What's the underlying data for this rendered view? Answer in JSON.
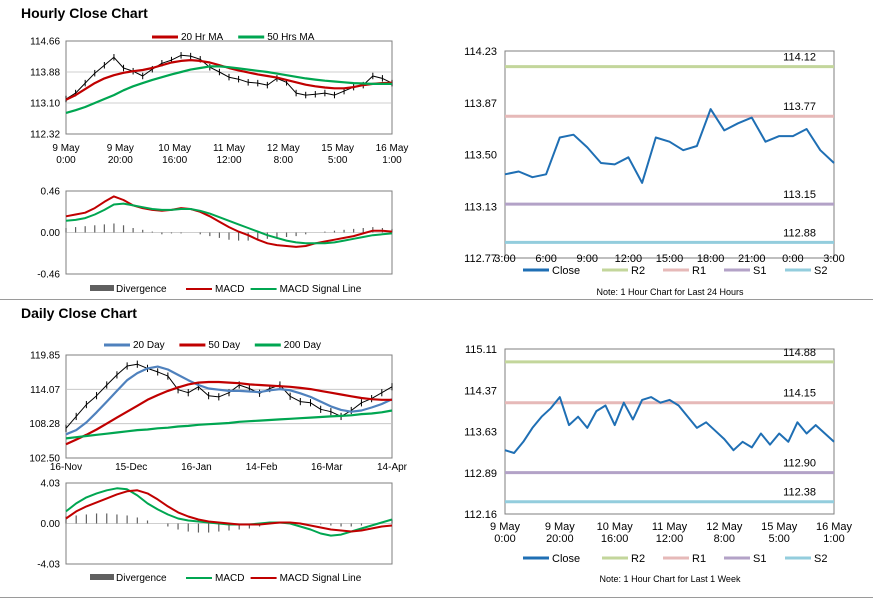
{
  "hourly": {
    "title": "Hourly Close Chart",
    "note": "Note: 1 Hour Chart for Last 24 Hours"
  },
  "daily": {
    "title": "Daily Close Chart",
    "note": "Note: 1 Hour Chart for Last 1 Week"
  },
  "chart_data": [
    {
      "id": "hourly-price",
      "type": "line",
      "title": "",
      "xlabel": "",
      "ylabel": "",
      "ylim": [
        112.32,
        114.66
      ],
      "yticks": [
        "114.66",
        "113.88",
        "113.10",
        "112.32"
      ],
      "xticks": [
        [
          "9 May",
          "0:00"
        ],
        [
          "9 May",
          "20:00"
        ],
        [
          "10 May",
          "16:00"
        ],
        [
          "11 May",
          "12:00"
        ],
        [
          "12 May",
          "8:00"
        ],
        [
          "15 May",
          "5:00"
        ],
        [
          "16 May",
          "1:00"
        ]
      ],
      "grid": true,
      "legend": "top",
      "series": [
        {
          "name": "20 Hr MA",
          "color": "#c00000",
          "values": [
            113.18,
            113.3,
            113.45,
            113.6,
            113.72,
            113.8,
            113.86,
            113.9,
            113.93,
            113.98,
            114.05,
            114.12,
            114.16,
            114.18,
            114.16,
            114.12,
            114.05,
            113.98,
            113.92,
            113.87,
            113.82,
            113.78,
            113.74,
            113.68,
            113.62,
            113.56,
            113.52,
            113.49,
            113.47,
            113.47,
            113.5,
            113.55,
            113.58,
            113.6,
            113.61
          ]
        },
        {
          "name": "50 Hrs MA",
          "color": "#00a651",
          "values": [
            112.85,
            112.92,
            113.0,
            113.1,
            113.2,
            113.3,
            113.42,
            113.52,
            113.6,
            113.68,
            113.75,
            113.82,
            113.88,
            113.94,
            113.98,
            114.02,
            114.02,
            114.0,
            113.97,
            113.94,
            113.91,
            113.88,
            113.84,
            113.8,
            113.76,
            113.72,
            113.69,
            113.66,
            113.64,
            113.62,
            113.6,
            113.59,
            113.58,
            113.58,
            113.58
          ]
        }
      ],
      "close": [
        113.2,
        113.35,
        113.6,
        113.85,
        114.05,
        114.25,
        113.98,
        113.9,
        113.78,
        113.95,
        114.1,
        114.18,
        114.3,
        114.28,
        114.2,
        114.0,
        113.88,
        113.75,
        113.7,
        113.62,
        113.6,
        113.55,
        113.72,
        113.62,
        113.35,
        113.3,
        113.32,
        113.35,
        113.3,
        113.4,
        113.5,
        113.55,
        113.78,
        113.72,
        113.6
      ]
    },
    {
      "id": "hourly-macd",
      "type": "line",
      "title": "",
      "xlabel": "",
      "ylabel": "",
      "ylim": [
        -0.46,
        0.46
      ],
      "yticks": [
        "0.46",
        "0.00",
        "-0.46"
      ],
      "grid": true,
      "legend": "bottom",
      "series": [
        {
          "name": "Divergence",
          "color": "#606060",
          "values": [
            0.05,
            0.06,
            0.07,
            0.08,
            0.09,
            0.1,
            0.08,
            0.05,
            0.03,
            0.01,
            -0.02,
            -0.01,
            -0.01,
            0.0,
            -0.02,
            -0.04,
            -0.06,
            -0.08,
            -0.09,
            -0.09,
            -0.08,
            -0.07,
            -0.06,
            -0.05,
            -0.04,
            -0.02,
            0.0,
            0.01,
            0.02,
            0.03,
            0.04,
            0.05,
            0.06,
            0.05,
            0.04
          ]
        },
        {
          "name": "MACD",
          "color": "#c00000",
          "values": [
            0.18,
            0.2,
            0.22,
            0.27,
            0.34,
            0.4,
            0.36,
            0.3,
            0.27,
            0.25,
            0.24,
            0.25,
            0.27,
            0.26,
            0.23,
            0.18,
            0.12,
            0.06,
            0.01,
            -0.03,
            -0.08,
            -0.12,
            -0.14,
            -0.15,
            -0.16,
            -0.15,
            -0.12,
            -0.1,
            -0.08,
            -0.06,
            -0.04,
            -0.01,
            0.02,
            0.02,
            0.01
          ]
        },
        {
          "name": "MACD Signal Line",
          "color": "#00a651",
          "values": [
            0.13,
            0.14,
            0.16,
            0.2,
            0.25,
            0.31,
            0.32,
            0.3,
            0.28,
            0.26,
            0.25,
            0.25,
            0.26,
            0.26,
            0.24,
            0.21,
            0.17,
            0.13,
            0.09,
            0.05,
            0.01,
            -0.03,
            -0.06,
            -0.09,
            -0.11,
            -0.12,
            -0.12,
            -0.12,
            -0.11,
            -0.09,
            -0.07,
            -0.05,
            -0.03,
            -0.02,
            -0.01
          ]
        }
      ]
    },
    {
      "id": "hourly-pivots",
      "type": "line",
      "title": "",
      "xlabel": "",
      "ylabel": "",
      "ylim": [
        112.77,
        114.23
      ],
      "yticks": [
        "114.23",
        "113.87",
        "113.50",
        "113.13",
        "112.77"
      ],
      "xticks": [
        "3:00",
        "6:00",
        "9:00",
        "12:00",
        "15:00",
        "18:00",
        "21:00",
        "0:00",
        "3:00"
      ],
      "grid": false,
      "legend": "bottom",
      "levels": [
        {
          "name": "R2",
          "value": 114.12,
          "label": "114.12",
          "color": "#c3d69b"
        },
        {
          "name": "R1",
          "value": 113.77,
          "label": "113.77",
          "color": "#e6b9b8"
        },
        {
          "name": "S1",
          "value": 113.15,
          "label": "113.15",
          "color": "#b3a2c7"
        },
        {
          "name": "S2",
          "value": 112.88,
          "label": "112.88",
          "color": "#93cddd"
        }
      ],
      "series": [
        {
          "name": "Close",
          "color": "#1f6fb4",
          "values": [
            113.36,
            113.38,
            113.34,
            113.36,
            113.62,
            113.64,
            113.55,
            113.44,
            113.43,
            113.48,
            113.3,
            113.62,
            113.59,
            113.53,
            113.56,
            113.82,
            113.67,
            113.72,
            113.76,
            113.59,
            113.63,
            113.63,
            113.68,
            113.53,
            113.44
          ]
        }
      ]
    },
    {
      "id": "daily-price",
      "type": "line",
      "title": "",
      "xlabel": "",
      "ylabel": "",
      "ylim": [
        102.5,
        119.85
      ],
      "yticks": [
        "119.85",
        "114.07",
        "108.28",
        "102.50"
      ],
      "xticks": [
        "16-Nov",
        "15-Dec",
        "16-Jan",
        "14-Feb",
        "16-Mar",
        "14-Apr"
      ],
      "grid": true,
      "legend": "top",
      "series": [
        {
          "name": "20 Day",
          "color": "#4f81bd",
          "values": [
            106.5,
            107.2,
            108.5,
            110.2,
            112.0,
            113.8,
            115.6,
            116.8,
            117.6,
            117.9,
            117.4,
            116.5,
            115.6,
            114.8,
            114.2,
            114.0,
            113.8,
            113.8,
            113.7,
            113.6,
            113.9,
            114.1,
            113.9,
            113.4,
            112.8,
            112.0,
            111.2,
            110.6,
            110.3,
            110.5,
            111.0,
            111.6,
            112.4
          ]
        },
        {
          "name": "50 Day",
          "color": "#c00000",
          "values": [
            104.8,
            105.6,
            106.4,
            107.3,
            108.3,
            109.3,
            110.3,
            111.3,
            112.3,
            113.1,
            113.8,
            114.4,
            114.9,
            115.2,
            115.3,
            115.3,
            115.2,
            115.1,
            114.9,
            114.8,
            114.7,
            114.6,
            114.5,
            114.3,
            114.1,
            113.8,
            113.5,
            113.2,
            112.9,
            112.6,
            112.4,
            112.3,
            112.3
          ]
        },
        {
          "name": "200 Day",
          "color": "#00a651",
          "values": [
            105.8,
            106.0,
            106.2,
            106.4,
            106.6,
            106.8,
            107.0,
            107.2,
            107.3,
            107.5,
            107.6,
            107.8,
            107.9,
            108.1,
            108.2,
            108.3,
            108.4,
            108.6,
            108.7,
            108.8,
            108.9,
            109.0,
            109.1,
            109.2,
            109.3,
            109.4,
            109.5,
            109.6,
            109.7,
            109.9,
            110.0,
            110.2,
            110.5
          ]
        }
      ],
      "close": [
        107.5,
        109.5,
        111.5,
        113.0,
        114.8,
        116.5,
        118.0,
        118.3,
        117.6,
        117.0,
        116.3,
        114.0,
        113.5,
        114.5,
        113.0,
        112.8,
        113.5,
        114.8,
        114.2,
        113.4,
        114.2,
        114.8,
        112.9,
        112.0,
        111.8,
        110.7,
        110.3,
        109.5,
        110.5,
        111.8,
        112.5,
        113.5,
        114.5
      ]
    },
    {
      "id": "daily-macd",
      "type": "line",
      "title": "",
      "xlabel": "",
      "ylabel": "",
      "ylim": [
        -4.03,
        4.03
      ],
      "yticks": [
        "4.03",
        "0.00",
        "-4.03"
      ],
      "grid": true,
      "legend": "bottom",
      "series": [
        {
          "name": "Divergence",
          "color": "#606060",
          "values": [
            0.7,
            0.8,
            0.9,
            1.0,
            1.0,
            0.9,
            0.8,
            0.6,
            0.3,
            0.0,
            -0.3,
            -0.6,
            -0.8,
            -0.9,
            -0.9,
            -0.8,
            -0.7,
            -0.6,
            -0.5,
            -0.3,
            -0.1,
            0.0,
            0.1,
            0.1,
            0.0,
            -0.1,
            -0.2,
            -0.3,
            -0.3,
            -0.2,
            0.0,
            0.2,
            0.4
          ]
        },
        {
          "name": "MACD",
          "color": "#00a651",
          "values": [
            1.2,
            2.0,
            2.6,
            3.0,
            3.3,
            3.5,
            3.4,
            2.8,
            2.0,
            1.4,
            0.9,
            0.5,
            0.3,
            0.2,
            0.1,
            0.0,
            -0.1,
            -0.1,
            -0.1,
            0.0,
            0.1,
            0.1,
            0.0,
            -0.3,
            -0.6,
            -1.0,
            -1.2,
            -1.1,
            -0.8,
            -0.5,
            -0.2,
            0.1,
            0.4
          ]
        },
        {
          "name": "MACD Signal Line",
          "color": "#c00000",
          "values": [
            0.5,
            1.2,
            1.7,
            2.1,
            2.5,
            2.9,
            3.2,
            3.3,
            3.0,
            2.4,
            1.7,
            1.1,
            0.7,
            0.4,
            0.2,
            0.1,
            0.0,
            -0.1,
            -0.1,
            -0.1,
            0.0,
            0.1,
            0.1,
            0.0,
            -0.2,
            -0.4,
            -0.6,
            -0.7,
            -0.8,
            -0.7,
            -0.5,
            -0.3,
            -0.2
          ]
        }
      ]
    },
    {
      "id": "daily-pivots",
      "type": "line",
      "title": "",
      "xlabel": "",
      "ylabel": "",
      "ylim": [
        112.16,
        115.11
      ],
      "yticks": [
        "115.11",
        "114.37",
        "113.63",
        "112.89",
        "112.16"
      ],
      "xticks": [
        [
          "9 May",
          "0:00"
        ],
        [
          "9 May",
          "20:00"
        ],
        [
          "10 May",
          "16:00"
        ],
        [
          "11 May",
          "12:00"
        ],
        [
          "12 May",
          "8:00"
        ],
        [
          "15 May",
          "5:00"
        ],
        [
          "16 May",
          "1:00"
        ]
      ],
      "grid": false,
      "legend": "bottom",
      "levels": [
        {
          "name": "R2",
          "value": 114.88,
          "label": "114.88",
          "color": "#c3d69b"
        },
        {
          "name": "R1",
          "value": 114.15,
          "label": "114.15",
          "color": "#e6b9b8"
        },
        {
          "name": "S1",
          "value": 112.9,
          "label": "112.90",
          "color": "#b3a2c7"
        },
        {
          "name": "S2",
          "value": 112.38,
          "label": "112.38",
          "color": "#93cddd"
        }
      ],
      "series": [
        {
          "name": "Close",
          "color": "#1f6fb4",
          "values": [
            113.3,
            113.25,
            113.45,
            113.7,
            113.9,
            114.05,
            114.25,
            113.75,
            113.9,
            113.7,
            114.0,
            114.1,
            113.75,
            114.15,
            113.85,
            114.2,
            114.25,
            114.15,
            114.2,
            114.1,
            113.9,
            113.7,
            113.8,
            113.65,
            113.5,
            113.3,
            113.45,
            113.35,
            113.6,
            113.4,
            113.6,
            113.45,
            113.8,
            113.6,
            113.75,
            113.6,
            113.45
          ]
        }
      ]
    }
  ]
}
